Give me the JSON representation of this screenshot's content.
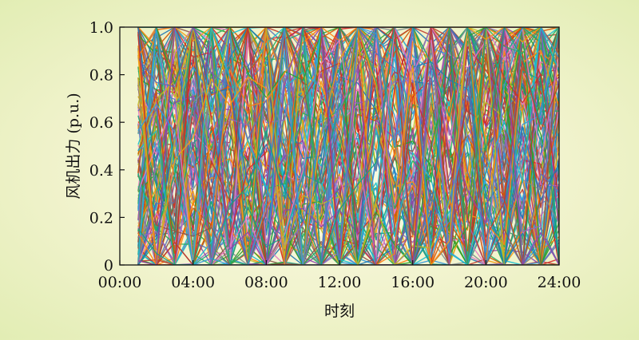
{
  "chart_data": {
    "type": "line",
    "title": "",
    "xlabel": "时刻",
    "ylabel": "风机出力 (p.u.)",
    "xlim": [
      0,
      24
    ],
    "ylim": [
      0,
      1.0
    ],
    "x_ticks": [
      "00:00",
      "04:00",
      "08:00",
      "12:00",
      "16:00",
      "20:00",
      "24:00"
    ],
    "y_ticks": [
      "0",
      "0.2",
      "0.4",
      "0.6",
      "0.8",
      "1.0"
    ],
    "x_tick_values": [
      0,
      4,
      8,
      12,
      16,
      20,
      24
    ],
    "y_tick_values": [
      0,
      0.2,
      0.4,
      0.6,
      0.8,
      1.0
    ],
    "x": [
      1,
      2,
      3,
      4,
      5,
      6,
      7,
      8,
      9,
      10,
      11,
      12,
      13,
      14,
      15,
      16,
      17,
      18,
      19,
      20,
      21,
      22,
      23,
      24
    ],
    "series_count": 160,
    "grid": false,
    "legend": "none",
    "palette": [
      "#d62728",
      "#1f77b4",
      "#2ca02c",
      "#ff7f0e",
      "#9467bd",
      "#8c564b",
      "#17becf",
      "#e377c2",
      "#bcbd22",
      "#5a6fb8",
      "#c0392b",
      "#27ae60",
      "#f39c12",
      "#8e44ad",
      "#3498db",
      "#16a085",
      "#d35400",
      "#7f8c8d"
    ]
  }
}
